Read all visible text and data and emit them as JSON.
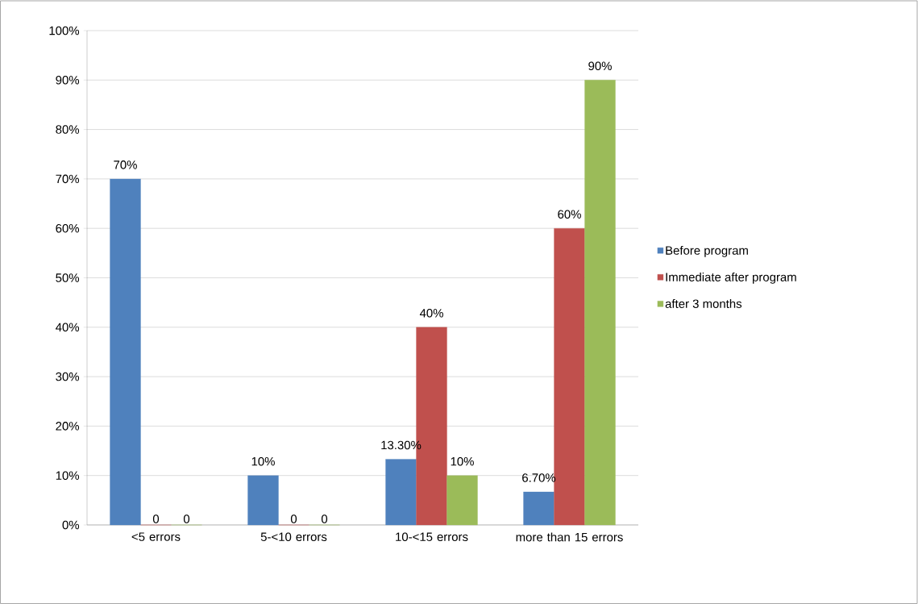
{
  "chart_data": {
    "type": "bar",
    "categories": [
      "<5 errors",
      "5-<10 errors",
      "10-<15 errors",
      "more than 15 errors"
    ],
    "series": [
      {
        "name": "Before program",
        "color": "#4f81bd",
        "values": [
          70,
          10,
          13.3,
          6.7
        ],
        "value_labels": [
          "70%",
          "10%",
          "13.30%",
          "6.70%"
        ]
      },
      {
        "name": "Immediate after program",
        "color": "#c0504d",
        "values": [
          0,
          0,
          40,
          60
        ],
        "value_labels": [
          "0",
          "0",
          "40%",
          "60%"
        ]
      },
      {
        "name": "after 3 months",
        "color": "#9bbb59",
        "values": [
          0,
          0,
          10,
          90
        ],
        "value_labels": [
          "0",
          "0",
          "10%",
          "90%"
        ]
      }
    ],
    "ylim": [
      0,
      100
    ],
    "yticks": [
      {
        "value": 0,
        "label": "0%"
      },
      {
        "value": 10,
        "label": "10%"
      },
      {
        "value": 20,
        "label": "20%"
      },
      {
        "value": 30,
        "label": "30%"
      },
      {
        "value": 40,
        "label": "40%"
      },
      {
        "value": 50,
        "label": "50%"
      },
      {
        "value": 60,
        "label": "60%"
      },
      {
        "value": 70,
        "label": "70%"
      },
      {
        "value": 80,
        "label": "80%"
      },
      {
        "value": 90,
        "label": "90%"
      },
      {
        "value": 100,
        "label": "100%"
      }
    ],
    "grid": "y",
    "legend": "right"
  }
}
